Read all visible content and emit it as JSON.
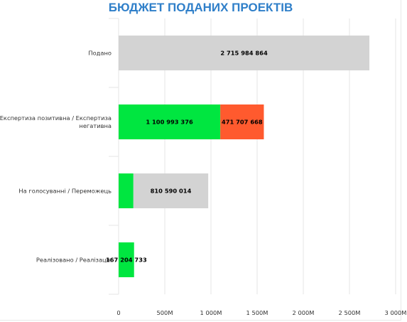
{
  "chart_data": {
    "type": "bar",
    "orientation": "horizontal",
    "stacked": true,
    "title": "БЮДЖЕТ ПОДАНИХ ПРОЕКТІВ",
    "categories": [
      [
        "Подано"
      ],
      [
        "Експертиза позитивна / Експертиза",
        "негативна"
      ],
      [
        "На голосуванні / Переможець"
      ],
      [
        "Реалізовано / Реалізація"
      ]
    ],
    "series": [
      {
        "color": "#00e640",
        "values": [
          0,
          1100993376,
          160000000,
          167204733
        ]
      },
      {
        "color": "#ff5a2e",
        "values": [
          0,
          471707668,
          0,
          0
        ]
      },
      {
        "color": "#d3d3d3",
        "values": [
          2715984864,
          0,
          810590014,
          0
        ]
      }
    ],
    "data_labels": [
      [
        null,
        null,
        "2 715 984 864"
      ],
      [
        "1 100 993 376",
        "471 707 668",
        null
      ],
      [
        null,
        null,
        "810 590 014"
      ],
      [
        "167 204 733",
        null,
        null
      ]
    ],
    "xlim": [
      0,
      3000000000
    ],
    "xticks": [
      0,
      500000000,
      1000000000,
      1500000000,
      2000000000,
      2500000000,
      3000000000
    ],
    "xtick_labels": [
      "0",
      "500M",
      "1 000M",
      "1 500M",
      "2 000M",
      "2 500M",
      "3 000M"
    ],
    "grid": true
  }
}
